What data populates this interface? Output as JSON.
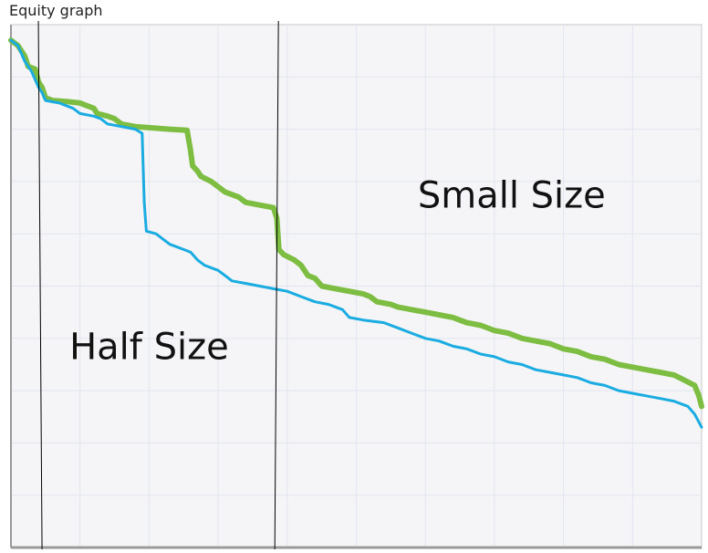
{
  "chart_data": {
    "type": "line",
    "title": "Equity graph",
    "xlabel": "",
    "ylabel": "",
    "xlim": [
      0,
      100
    ],
    "ylim": [
      0,
      100
    ],
    "grid": true,
    "legend": "none",
    "series": [
      {
        "color": "#7dbd42",
        "points": [
          [
            0,
            97
          ],
          [
            1,
            96
          ],
          [
            2,
            94
          ],
          [
            2.5,
            92
          ],
          [
            3.5,
            91.5
          ],
          [
            4,
            89
          ],
          [
            4.5,
            88
          ],
          [
            5,
            86
          ],
          [
            6,
            85.5
          ],
          [
            8,
            85.3
          ],
          [
            10,
            85
          ],
          [
            11,
            84.5
          ],
          [
            12,
            84
          ],
          [
            12.5,
            83
          ],
          [
            14,
            82.5
          ],
          [
            15,
            82
          ],
          [
            16,
            81
          ],
          [
            18,
            80.5
          ],
          [
            20,
            80.3
          ],
          [
            23,
            80
          ],
          [
            25.5,
            79.8
          ],
          [
            26,
            76
          ],
          [
            26.3,
            73
          ],
          [
            27,
            72
          ],
          [
            27.5,
            71
          ],
          [
            29,
            70
          ],
          [
            30,
            69
          ],
          [
            31,
            68
          ],
          [
            32,
            67.5
          ],
          [
            33,
            67
          ],
          [
            34,
            66
          ],
          [
            36,
            65.5
          ],
          [
            38,
            65
          ],
          [
            38.5,
            63
          ],
          [
            38.8,
            57
          ],
          [
            39.5,
            56
          ],
          [
            41,
            55
          ],
          [
            42,
            54
          ],
          [
            43,
            52
          ],
          [
            44,
            51.5
          ],
          [
            45,
            50
          ],
          [
            47,
            49.5
          ],
          [
            49,
            49
          ],
          [
            51,
            48.5
          ],
          [
            52,
            48
          ],
          [
            53,
            47
          ],
          [
            55,
            46.5
          ],
          [
            56,
            46
          ],
          [
            58,
            45.5
          ],
          [
            60,
            45
          ],
          [
            62,
            44.5
          ],
          [
            64,
            44
          ],
          [
            66,
            43
          ],
          [
            68,
            42.5
          ],
          [
            70,
            41.5
          ],
          [
            72,
            41
          ],
          [
            74,
            40
          ],
          [
            76,
            39.5
          ],
          [
            78,
            39
          ],
          [
            80,
            38
          ],
          [
            82,
            37.5
          ],
          [
            84,
            36.5
          ],
          [
            86,
            36
          ],
          [
            88,
            35
          ],
          [
            90,
            34.5
          ],
          [
            92,
            34
          ],
          [
            94,
            33.5
          ],
          [
            96,
            33
          ],
          [
            97.5,
            32
          ],
          [
            99,
            31
          ],
          [
            99.6,
            29
          ],
          [
            100,
            27
          ]
        ]
      },
      {
        "color": "#1aace1",
        "points": [
          [
            0,
            97
          ],
          [
            1,
            96
          ],
          [
            2,
            93
          ],
          [
            3,
            91
          ],
          [
            4,
            88
          ],
          [
            4.5,
            87
          ],
          [
            5,
            85.5
          ],
          [
            7,
            85
          ],
          [
            8,
            84.5
          ],
          [
            9,
            84
          ],
          [
            10,
            83
          ],
          [
            12,
            82.5
          ],
          [
            13,
            82
          ],
          [
            14,
            81
          ],
          [
            16,
            80.5
          ],
          [
            18,
            80
          ],
          [
            19,
            79.2
          ],
          [
            19.3,
            66
          ],
          [
            19.6,
            60.5
          ],
          [
            21,
            60
          ],
          [
            22,
            59
          ],
          [
            23,
            58
          ],
          [
            25,
            57
          ],
          [
            26,
            56.5
          ],
          [
            27,
            55
          ],
          [
            28,
            54
          ],
          [
            30,
            53
          ],
          [
            31,
            52
          ],
          [
            32,
            51
          ],
          [
            34,
            50.5
          ],
          [
            36,
            50
          ],
          [
            38,
            49.5
          ],
          [
            40,
            49
          ],
          [
            42,
            48
          ],
          [
            44,
            47
          ],
          [
            46,
            46.5
          ],
          [
            48,
            45.5
          ],
          [
            49,
            44
          ],
          [
            51,
            43.5
          ],
          [
            54,
            43
          ],
          [
            56,
            42
          ],
          [
            58,
            41
          ],
          [
            60,
            40
          ],
          [
            62,
            39.5
          ],
          [
            64,
            38.5
          ],
          [
            66,
            38
          ],
          [
            68,
            37
          ],
          [
            70,
            36.5
          ],
          [
            72,
            35.5
          ],
          [
            74,
            35
          ],
          [
            76,
            34
          ],
          [
            78,
            33.5
          ],
          [
            80,
            33
          ],
          [
            82,
            32.5
          ],
          [
            84,
            31.5
          ],
          [
            86,
            31
          ],
          [
            88,
            30
          ],
          [
            90,
            29.5
          ],
          [
            92,
            29
          ],
          [
            94,
            28.5
          ],
          [
            96,
            28
          ],
          [
            98,
            27
          ],
          [
            99,
            25.5
          ],
          [
            100,
            23
          ]
        ]
      }
    ],
    "vertical_lines_x": [
      4.5,
      38.2
    ],
    "annotations": [
      {
        "text": "Small Size",
        "x": 72.5,
        "y": 65
      },
      {
        "text": "Half Size",
        "x": 20,
        "y": 36
      }
    ]
  }
}
